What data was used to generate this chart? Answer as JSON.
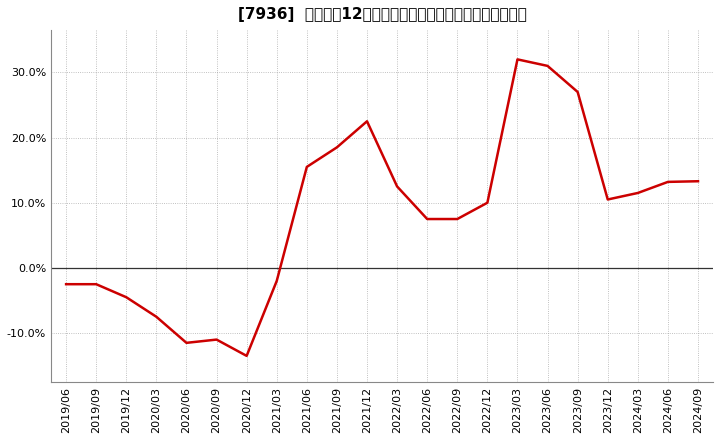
{
  "title": "[7936]  売上高の12か月移動合計の対前年同期増減率の推移",
  "line_color": "#cc0000",
  "background_color": "#ffffff",
  "grid_color": "#999999",
  "dates": [
    "2019/06",
    "2019/09",
    "2019/12",
    "2020/03",
    "2020/06",
    "2020/09",
    "2020/12",
    "2021/03",
    "2021/06",
    "2021/09",
    "2021/12",
    "2022/03",
    "2022/06",
    "2022/09",
    "2022/12",
    "2023/03",
    "2023/06",
    "2023/09",
    "2023/12",
    "2024/03",
    "2024/06",
    "2024/09"
  ],
  "values": [
    -0.025,
    -0.025,
    -0.045,
    -0.075,
    -0.115,
    -0.11,
    -0.135,
    -0.02,
    0.155,
    0.185,
    0.225,
    0.125,
    0.075,
    0.075,
    0.1,
    0.32,
    0.31,
    0.27,
    0.105,
    0.115,
    0.132,
    0.133
  ],
  "yticks": [
    -0.1,
    0.0,
    0.1,
    0.2,
    0.3
  ],
  "ytick_labels": [
    "-10.0%",
    "0.0%",
    "10.0%",
    "20.0%",
    "30.0%"
  ],
  "ylim": [
    -0.175,
    0.365
  ],
  "title_fontsize": 11,
  "tick_fontsize": 8,
  "linewidth": 1.8
}
